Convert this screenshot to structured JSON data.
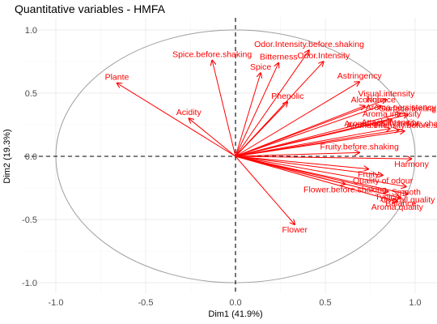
{
  "chart_data": {
    "type": "scatter",
    "subtype": "correlation-circle",
    "title": "Quantitative variables - HMFA",
    "xlabel": "Dim1 (41.9%)",
    "ylabel": "Dim2 (19.3%)",
    "xlim": [
      -1.0,
      1.0
    ],
    "ylim": [
      -1.0,
      1.0
    ],
    "x_ticks": [
      -1.0,
      -0.5,
      0.0,
      0.5,
      1.0
    ],
    "y_ticks": [
      -1.0,
      -0.5,
      0.0,
      0.5,
      1.0
    ],
    "x_tick_labels": [
      "-1.0",
      "-0.5",
      "0.0",
      "0.5",
      "1.0"
    ],
    "y_tick_labels": [
      "-1.0",
      "-0.5",
      "0.0",
      "0.5",
      "1.0"
    ],
    "grid": true,
    "unit_circle": true,
    "arrow_color": "#ff0000",
    "circle_color": "#9e9e9e",
    "variables": [
      {
        "name": "Plante",
        "x": -0.66,
        "y": 0.58
      },
      {
        "name": "Acidity",
        "x": -0.26,
        "y": 0.3
      },
      {
        "name": "Spice.before.shaking",
        "x": -0.13,
        "y": 0.76
      },
      {
        "name": "Spice",
        "x": 0.14,
        "y": 0.66
      },
      {
        "name": "Bitterness",
        "x": 0.24,
        "y": 0.74
      },
      {
        "name": "Odor.Intensity.before.shaking",
        "x": 0.41,
        "y": 0.84
      },
      {
        "name": "Odor.Intensity",
        "x": 0.49,
        "y": 0.75
      },
      {
        "name": "Phenolic",
        "x": 0.29,
        "y": 0.43
      },
      {
        "name": "Astringency",
        "x": 0.69,
        "y": 0.59
      },
      {
        "name": "Visual.intensity",
        "x": 0.84,
        "y": 0.45
      },
      {
        "name": "Nuance",
        "x": 0.81,
        "y": 0.4
      },
      {
        "name": "Alcohol",
        "x": 0.72,
        "y": 0.4
      },
      {
        "name": "Aroma.persistency",
        "x": 0.92,
        "y": 0.34
      },
      {
        "name": "Surface.feeling",
        "x": 0.96,
        "y": 0.33
      },
      {
        "name": "Aroma.intensity",
        "x": 0.87,
        "y": 0.29
      },
      {
        "name": "Attack.intensity",
        "x": 0.86,
        "y": 0.22
      },
      {
        "name": "Aroma.quality.before.shaking",
        "x": 0.91,
        "y": 0.21
      },
      {
        "name": "Aroma.intensity.before.shaking",
        "x": 0.94,
        "y": 0.2
      },
      {
        "name": "Fruity.before.shaking",
        "x": 0.69,
        "y": 0.03
      },
      {
        "name": "Harmony",
        "x": 0.98,
        "y": -0.02
      },
      {
        "name": "Fruity",
        "x": 0.74,
        "y": -0.1
      },
      {
        "name": "Quality of odour",
        "x": 0.82,
        "y": -0.15
      },
      {
        "name": "Smooth",
        "x": 0.95,
        "y": -0.24
      },
      {
        "name": "Typical",
        "x": 0.85,
        "y": -0.28
      },
      {
        "name": "Balance",
        "x": 0.92,
        "y": -0.33
      },
      {
        "name": "Overall.quality",
        "x": 0.96,
        "y": -0.3
      },
      {
        "name": "Aroma.quality",
        "x": 0.9,
        "y": -0.36
      },
      {
        "name": "Flower.before.shaking",
        "x": 0.61,
        "y": -0.22
      },
      {
        "name": "Flower",
        "x": 0.33,
        "y": -0.54
      }
    ]
  }
}
